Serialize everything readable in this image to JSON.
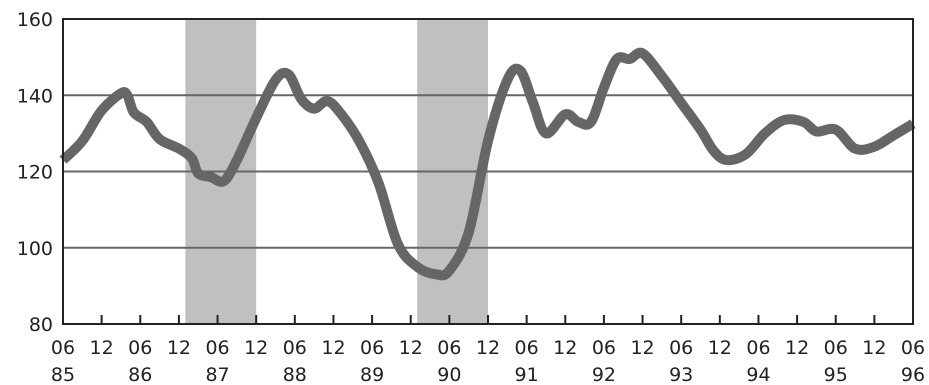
{
  "chart_data": {
    "type": "line",
    "title": "",
    "xlabel": "",
    "ylabel": "",
    "ylim": [
      80,
      160
    ],
    "yticks": [
      "80",
      "100",
      "120",
      "140",
      "160"
    ],
    "grid": "horizontal",
    "legend": "none",
    "x_tick_months": [
      "06",
      "12",
      "06",
      "12",
      "06",
      "12",
      "06",
      "12",
      "06",
      "12",
      "06",
      "12",
      "06",
      "12",
      "06",
      "12",
      "06",
      "12",
      "06",
      "12",
      "06",
      "12",
      "06"
    ],
    "x_year_labels": [
      "85",
      "86",
      "87",
      "88",
      "89",
      "90",
      "91",
      "92",
      "93",
      "94",
      "95",
      "96"
    ],
    "x_range": [
      "1985-06",
      "1996-06"
    ],
    "shaded_periods": [
      {
        "start": "1987-01",
        "end": "1987-12"
      },
      {
        "start": "1990-01",
        "end": "1990-12"
      }
    ],
    "series": [
      {
        "name": "",
        "color": "#666666",
        "points": [
          [
            "1985-06",
            123
          ],
          [
            "1985-09",
            128
          ],
          [
            "1985-12",
            136
          ],
          [
            "1986-03",
            140.5
          ],
          [
            "1986-04",
            140
          ],
          [
            "1986-05",
            135.5
          ],
          [
            "1986-07",
            133
          ],
          [
            "1986-09",
            128.5
          ],
          [
            "1986-12",
            126
          ],
          [
            "1987-02",
            123.5
          ],
          [
            "1987-03",
            119.5
          ],
          [
            "1987-05",
            118.5
          ],
          [
            "1987-07",
            117.5
          ],
          [
            "1987-09",
            123
          ],
          [
            "1987-12",
            134
          ],
          [
            "1988-03",
            144
          ],
          [
            "1988-05",
            145.5
          ],
          [
            "1988-07",
            139
          ],
          [
            "1988-09",
            136.5
          ],
          [
            "1988-11",
            138.5
          ],
          [
            "1989-01",
            135.5
          ],
          [
            "1989-04",
            128
          ],
          [
            "1989-07",
            117
          ],
          [
            "1989-10",
            101
          ],
          [
            "1990-01",
            95
          ],
          [
            "1990-04",
            93
          ],
          [
            "1990-06",
            94
          ],
          [
            "1990-09",
            104
          ],
          [
            "1990-12",
            128
          ],
          [
            "1991-03",
            144
          ],
          [
            "1991-05",
            146.5
          ],
          [
            "1991-07",
            138
          ],
          [
            "1991-09",
            130
          ],
          [
            "1991-12",
            135
          ],
          [
            "1992-02",
            133
          ],
          [
            "1992-04",
            133
          ],
          [
            "1992-06",
            142
          ],
          [
            "1992-08",
            149.5
          ],
          [
            "1992-10",
            149.5
          ],
          [
            "1992-12",
            151
          ],
          [
            "1993-03",
            145
          ],
          [
            "1993-06",
            138
          ],
          [
            "1993-09",
            131
          ],
          [
            "1993-11",
            125.5
          ],
          [
            "1994-01",
            123
          ],
          [
            "1994-04",
            124.5
          ],
          [
            "1994-07",
            130
          ],
          [
            "1994-10",
            133.5
          ],
          [
            "1995-01",
            133
          ],
          [
            "1995-03",
            130.5
          ],
          [
            "1995-06",
            131
          ],
          [
            "1995-09",
            126
          ],
          [
            "1995-12",
            126.5
          ],
          [
            "1996-03",
            129.5
          ],
          [
            "1996-06",
            132.5
          ]
        ]
      }
    ]
  }
}
